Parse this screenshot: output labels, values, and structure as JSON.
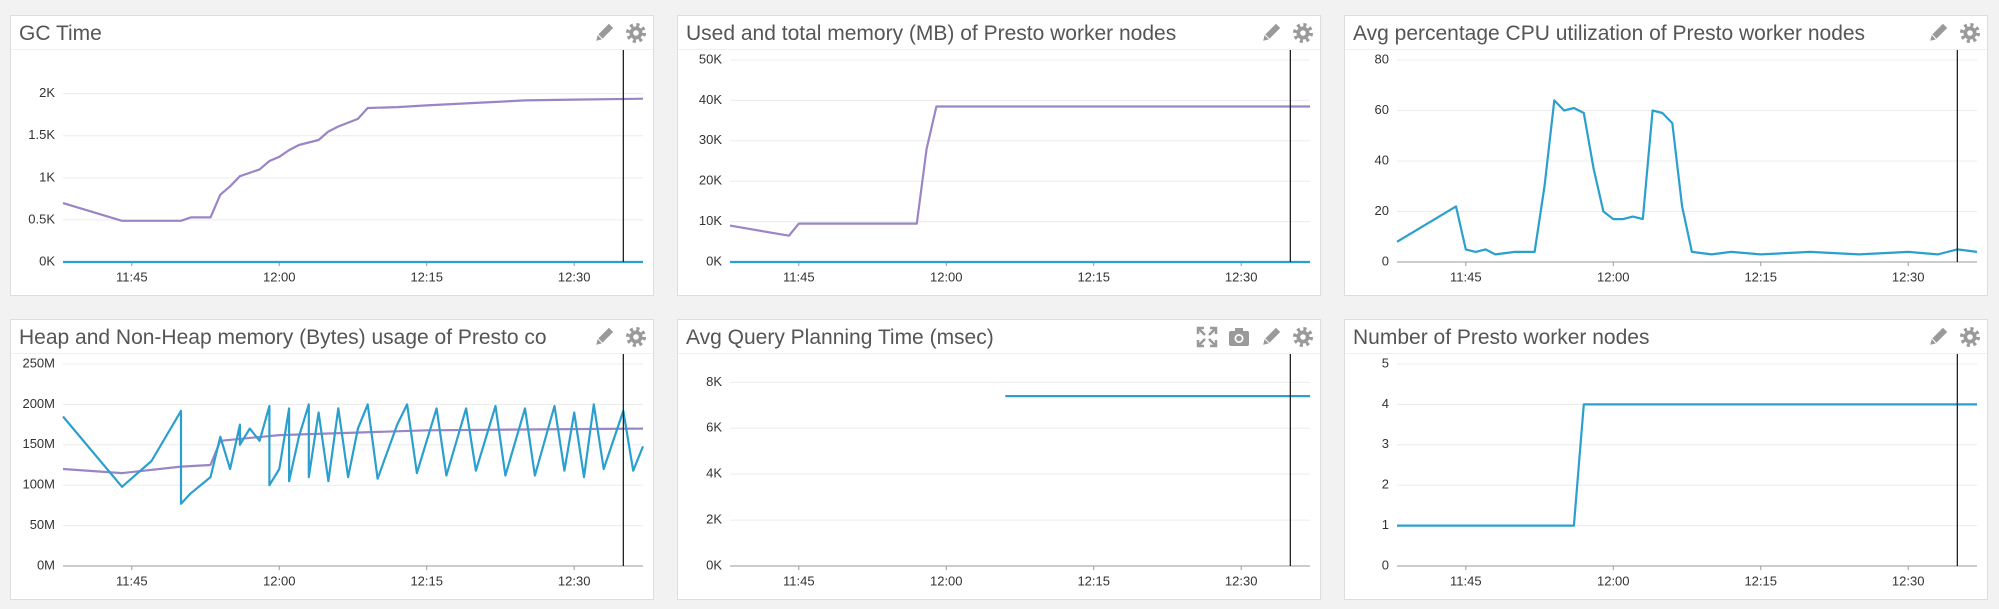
{
  "chart_data": [
    {
      "type": "line",
      "title": "GC Time",
      "xlim": [
        "11:38",
        "12:37"
      ],
      "xticks": [
        "11:45",
        "12:00",
        "12:15",
        "12:30"
      ],
      "ylim": [
        0,
        2400
      ],
      "yticks": [
        {
          "value": 0,
          "label": "0K"
        },
        {
          "value": 500,
          "label": "0.5K"
        },
        {
          "value": 1000,
          "label": "1K"
        },
        {
          "value": 1500,
          "label": "1.5K"
        },
        {
          "value": 2000,
          "label": "2K"
        }
      ],
      "marker": "12:35",
      "series": [
        {
          "color": "#9a86c4",
          "x": [
            "11:38",
            "11:44",
            "11:50",
            "11:51",
            "11:53",
            "11:54",
            "11:55",
            "11:56",
            "11:58",
            "11:59",
            "12:00",
            "12:01",
            "12:02",
            "12:04",
            "12:05",
            "12:06",
            "12:08",
            "12:09",
            "12:12",
            "12:15",
            "12:20",
            "12:25",
            "12:30",
            "12:37"
          ],
          "values": [
            700,
            490,
            490,
            530,
            530,
            800,
            900,
            1020,
            1100,
            1200,
            1250,
            1330,
            1390,
            1450,
            1550,
            1610,
            1700,
            1830,
            1840,
            1860,
            1890,
            1920,
            1930,
            1940
          ]
        },
        {
          "color": "#2b9fce",
          "x": [
            "11:38",
            "12:37"
          ],
          "values": [
            0,
            0
          ]
        }
      ]
    },
    {
      "type": "line",
      "title": "Used and total memory (MB) of Presto worker nodes",
      "xlim": [
        "11:38",
        "12:37"
      ],
      "xticks": [
        "11:45",
        "12:00",
        "12:15",
        "12:30"
      ],
      "ylim": [
        0,
        50000
      ],
      "yticks": [
        {
          "value": 0,
          "label": "0K"
        },
        {
          "value": 10000,
          "label": "10K"
        },
        {
          "value": 20000,
          "label": "20K"
        },
        {
          "value": 30000,
          "label": "30K"
        },
        {
          "value": 40000,
          "label": "40K"
        },
        {
          "value": 50000,
          "label": "50K"
        }
      ],
      "marker": "12:35",
      "series": [
        {
          "color": "#9a86c4",
          "x": [
            "11:38",
            "11:44",
            "11:45",
            "11:57",
            "11:58",
            "11:59",
            "12:37"
          ],
          "values": [
            9000,
            6500,
            9500,
            9500,
            28000,
            38500,
            38500
          ]
        },
        {
          "color": "#2b9fce",
          "x": [
            "11:38",
            "12:37"
          ],
          "values": [
            0,
            0
          ]
        }
      ]
    },
    {
      "type": "line",
      "title": "Avg percentage CPU utilization of Presto worker nodes",
      "xlim": [
        "11:38",
        "12:37"
      ],
      "xticks": [
        "11:45",
        "12:00",
        "12:15",
        "12:30"
      ],
      "ylim": [
        0,
        80
      ],
      "yticks": [
        0,
        20,
        40,
        60,
        80
      ],
      "marker": "12:35",
      "series": [
        {
          "color": "#2b9fce",
          "x": [
            "11:38",
            "11:44",
            "11:45",
            "11:46",
            "11:47",
            "11:48",
            "11:50",
            "11:52",
            "11:53",
            "11:54",
            "11:55",
            "11:56",
            "11:57",
            "11:58",
            "11:59",
            "12:00",
            "12:01",
            "12:02",
            "12:03",
            "12:04",
            "12:05",
            "12:06",
            "12:07",
            "12:08",
            "12:10",
            "12:12",
            "12:15",
            "12:20",
            "12:25",
            "12:30",
            "12:33",
            "12:35",
            "12:37"
          ],
          "values": [
            8,
            22,
            5,
            4,
            5,
            3,
            4,
            4,
            30,
            64,
            60,
            61,
            59,
            37,
            20,
            17,
            17,
            18,
            17,
            60,
            59,
            55,
            22,
            4,
            3,
            4,
            3,
            4,
            3,
            4,
            3,
            5,
            4
          ]
        }
      ]
    },
    {
      "type": "line",
      "title": "Heap and Non-Heap memory (Bytes) usage of Presto co",
      "xlim": [
        "11:38",
        "12:37"
      ],
      "xticks": [
        "11:45",
        "12:00",
        "12:15",
        "12:30"
      ],
      "ylim": [
        0,
        250000000
      ],
      "yticks": [
        {
          "value": 0,
          "label": "0M"
        },
        {
          "value": 50000000,
          "label": "50M"
        },
        {
          "value": 100000000,
          "label": "100M"
        },
        {
          "value": 150000000,
          "label": "150M"
        },
        {
          "value": 200000000,
          "label": "200M"
        },
        {
          "value": 250000000,
          "label": "250M"
        }
      ],
      "marker": "12:35",
      "series": [
        {
          "color": "#9a86c4",
          "x": [
            "11:38",
            "11:44",
            "11:50",
            "11:53",
            "11:54",
            "12:00",
            "12:15",
            "12:37"
          ],
          "values": [
            120000000,
            115000000,
            123000000,
            125000000,
            155000000,
            162000000,
            168000000,
            170000000
          ]
        },
        {
          "color": "#2b9fce",
          "x": [
            "11:38",
            "11:44",
            "11:47",
            "11:50",
            "11:50",
            "11:51",
            "11:53",
            "11:54",
            "11:55",
            "11:56",
            "11:56",
            "11:57",
            "11:58",
            "11:59",
            "11:59",
            "12:00",
            "12:01",
            "12:01",
            "12:02",
            "12:03",
            "12:03",
            "12:04",
            "12:05",
            "12:06",
            "12:07",
            "12:08",
            "12:09",
            "12:10",
            "12:12",
            "12:13",
            "12:14",
            "12:16",
            "12:17",
            "12:19",
            "12:20",
            "12:22",
            "12:23",
            "12:25",
            "12:26",
            "12:28",
            "12:29",
            "12:30",
            "12:31",
            "12:32",
            "12:33",
            "12:35",
            "12:36",
            "12:37"
          ],
          "values": [
            185000000,
            98000000,
            130000000,
            192000000,
            77000000,
            90000000,
            110000000,
            160000000,
            120000000,
            175000000,
            150000000,
            170000000,
            155000000,
            198000000,
            100000000,
            120000000,
            195000000,
            105000000,
            160000000,
            200000000,
            110000000,
            190000000,
            105000000,
            195000000,
            110000000,
            170000000,
            200000000,
            108000000,
            175000000,
            200000000,
            115000000,
            195000000,
            112000000,
            195000000,
            118000000,
            198000000,
            112000000,
            195000000,
            112000000,
            198000000,
            118000000,
            190000000,
            110000000,
            200000000,
            120000000,
            192000000,
            118000000,
            148000000
          ]
        }
      ]
    },
    {
      "type": "line",
      "title": "Avg Query Planning Time (msec)",
      "xlim": [
        "11:38",
        "12:37"
      ],
      "xticks": [
        "11:45",
        "12:00",
        "12:15",
        "12:30"
      ],
      "ylim": [
        0,
        8800
      ],
      "yticks": [
        {
          "value": 0,
          "label": "0K"
        },
        {
          "value": 2000,
          "label": "2K"
        },
        {
          "value": 4000,
          "label": "4K"
        },
        {
          "value": 6000,
          "label": "6K"
        },
        {
          "value": 8000,
          "label": "8K"
        }
      ],
      "marker": "12:35",
      "series": [
        {
          "color": "#2b9fce",
          "x": [
            "12:06",
            "12:37"
          ],
          "values": [
            7400,
            7400
          ]
        }
      ]
    },
    {
      "type": "line",
      "title": "Number of Presto worker nodes",
      "xlim": [
        "11:38",
        "12:37"
      ],
      "xticks": [
        "11:45",
        "12:00",
        "12:15",
        "12:30"
      ],
      "ylim": [
        0,
        5
      ],
      "yticks": [
        0,
        1,
        2,
        3,
        4,
        5
      ],
      "marker": "12:35",
      "series": [
        {
          "color": "#2b9fce",
          "x": [
            "11:38",
            "11:56",
            "11:57",
            "12:37"
          ],
          "values": [
            1,
            1,
            4,
            4
          ]
        }
      ]
    }
  ]
}
